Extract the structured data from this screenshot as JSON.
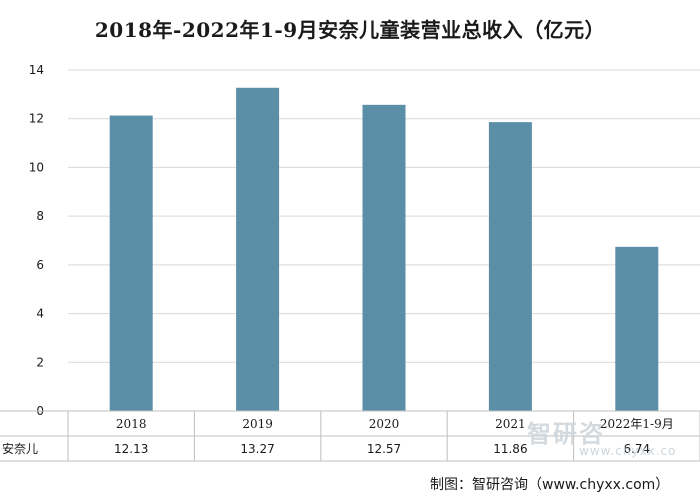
{
  "chart_data": {
    "type": "bar",
    "title": "2018年-2022年1-9月安奈儿童装营业总收入（亿元）",
    "categories": [
      "2018",
      "2019",
      "2020",
      "2021",
      "2022年1-9月"
    ],
    "series": [
      {
        "name": "安奈儿",
        "values": [
          12.13,
          13.27,
          12.57,
          11.86,
          6.74
        ]
      }
    ],
    "value_labels": [
      "12.13",
      "13.27",
      "12.57",
      "11.86",
      "6.74"
    ],
    "ylim": [
      0,
      14
    ],
    "yticks": [
      0,
      2,
      4,
      6,
      8,
      10,
      12,
      14
    ],
    "grid": true,
    "data_table": true,
    "bar_color": "#5b8fa8",
    "grid_color": "#d9d9d9"
  },
  "footer": {
    "source": "制图：智研咨询（www.chyxx.com）"
  },
  "watermark": {
    "brand": "智研咨",
    "url": "www.chyxx.co"
  }
}
